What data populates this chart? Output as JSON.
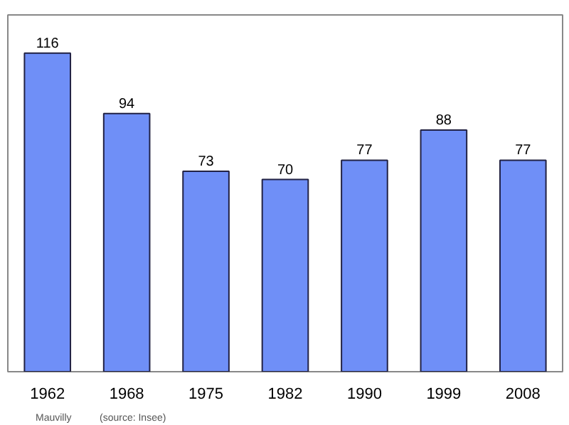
{
  "chart_data": {
    "type": "bar",
    "categories": [
      "1962",
      "1968",
      "1975",
      "1982",
      "1990",
      "1999",
      "2008"
    ],
    "values": [
      116,
      94,
      73,
      70,
      77,
      88,
      77
    ],
    "color": "#6f8ff7",
    "data_labels": true,
    "grid": false,
    "tick_labels": "x",
    "annotations": [
      "Mauvilly",
      "(source: Insee)"
    ]
  }
}
